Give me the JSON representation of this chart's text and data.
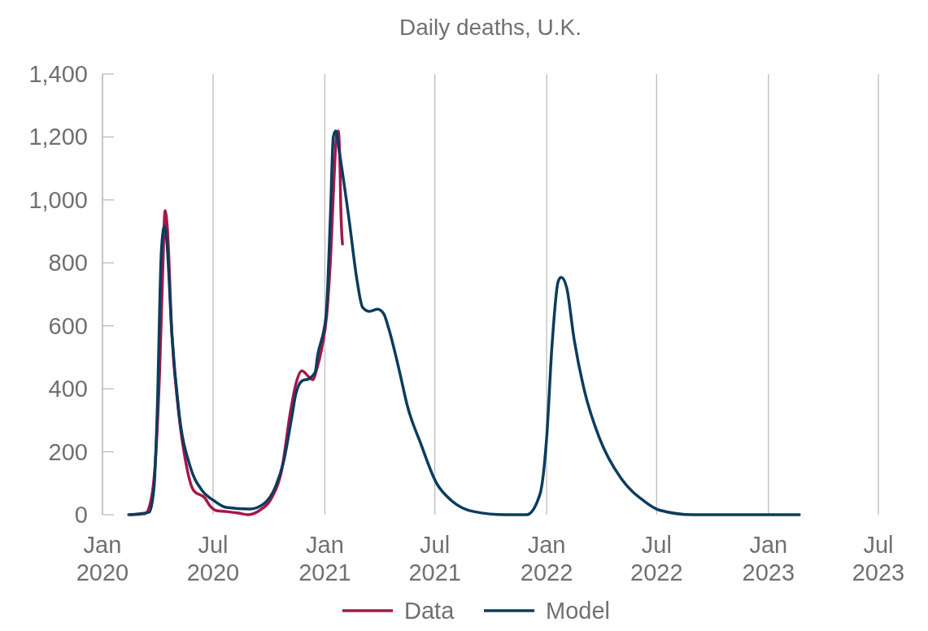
{
  "chart_data": {
    "type": "line",
    "title": "Daily deaths, U.K.",
    "xlim": [
      "2020-01",
      "2023-07"
    ],
    "xticks": [
      {
        "value": "2020-01",
        "label": "Jan 2020"
      },
      {
        "value": "2020-07",
        "label": "Jul 2020"
      },
      {
        "value": "2021-01",
        "label": "Jan 2021"
      },
      {
        "value": "2021-07",
        "label": "Jul 2021"
      },
      {
        "value": "2022-01",
        "label": "Jan 2022"
      },
      {
        "value": "2022-07",
        "label": "Jul 2022"
      },
      {
        "value": "2023-01",
        "label": "Jan 2023"
      },
      {
        "value": "2023-07",
        "label": "Jul 2023"
      }
    ],
    "ylim": [
      0,
      1400
    ],
    "yticks": [
      0,
      200,
      400,
      600,
      800,
      {
        "value": 1000,
        "label": "1,000"
      },
      {
        "value": 1200,
        "label": "1,200"
      },
      {
        "value": 1400,
        "label": "1,400"
      }
    ],
    "grid": "x",
    "legend": "bottom",
    "marker": "none",
    "line_style": "solid",
    "series": [
      {
        "name": "Data",
        "color": "#a6174a",
        "x": [
          "2020-02-17",
          "2020-03-11",
          "2020-03-20",
          "2020-03-28",
          "2020-04-04",
          "2020-04-09",
          "2020-04-13",
          "2020-04-17",
          "2020-04-24",
          "2020-05-04",
          "2020-05-17",
          "2020-05-30",
          "2020-06-18",
          "2020-06-26",
          "2020-07-07",
          "2020-07-23",
          "2020-08-12",
          "2020-08-27",
          "2020-09-15",
          "2020-10-05",
          "2020-10-22",
          "2020-11-05",
          "2020-11-14",
          "2020-11-24",
          "2020-12-12",
          "2020-12-19",
          "2020-12-27",
          "2021-01-04",
          "2021-01-11",
          "2021-01-16",
          "2021-01-20",
          "2021-01-23",
          "2021-01-26",
          "2021-01-27",
          "2021-01-30"
        ],
        "values": [
          0,
          3,
          39,
          168,
          452,
          762,
          966,
          904,
          581,
          349,
          168,
          77,
          52,
          28,
          13,
          10,
          5,
          0,
          13,
          52,
          142,
          323,
          413,
          457,
          429,
          465,
          530,
          633,
          840,
          1064,
          1201,
          1219,
          1098,
          994,
          860
        ]
      },
      {
        "name": "Model",
        "color": "#0b3c5d",
        "x": [
          "2020-02-13",
          "2020-03-18",
          "2020-03-26",
          "2020-03-31",
          "2020-04-07",
          "2020-04-12",
          "2020-04-16",
          "2020-04-24",
          "2020-05-06",
          "2020-05-24",
          "2020-06-13",
          "2020-07-03",
          "2020-07-23",
          "2020-08-30",
          "2020-09-22",
          "2020-10-12",
          "2020-10-25",
          "2020-11-08",
          "2020-11-14",
          "2020-11-25",
          "2020-12-05",
          "2020-12-16",
          "2020-12-20",
          "2021-01-03",
          "2021-01-10",
          "2021-01-15",
          "2021-01-19",
          "2021-01-25",
          "2021-02-10",
          "2021-02-23",
          "2021-03-04",
          "2021-03-15",
          "2021-03-29",
          "2021-04-08",
          "2021-04-16",
          "2021-05-03",
          "2021-05-17",
          "2021-06-08",
          "2021-07-03",
          "2021-07-29",
          "2021-09-03",
          "2021-10-26",
          "2021-11-29",
          "2021-12-21",
          "2022-01-01",
          "2022-01-10",
          "2022-01-20",
          "2022-01-25",
          "2022-02-03",
          "2022-02-15",
          "2022-03-03",
          "2022-03-29",
          "2022-05-04",
          "2022-06-10",
          "2022-07-05",
          "2022-08-31",
          "2022-11-16",
          "2023-02-21"
        ],
        "values": [
          0,
          8,
          90,
          323,
          840,
          917,
          866,
          581,
          323,
          155,
          77,
          44,
          23,
          18,
          34,
          90,
          168,
          315,
          382,
          426,
          431,
          452,
          504,
          633,
          943,
          1201,
          1219,
          1150,
          935,
          744,
          659,
          646,
          653,
          638,
          592,
          462,
          344,
          225,
          103,
          44,
          10,
          0,
          0,
          65,
          243,
          542,
          741,
          754,
          721,
          560,
          403,
          243,
          114,
          44,
          15,
          0,
          0,
          0
        ]
      }
    ]
  }
}
